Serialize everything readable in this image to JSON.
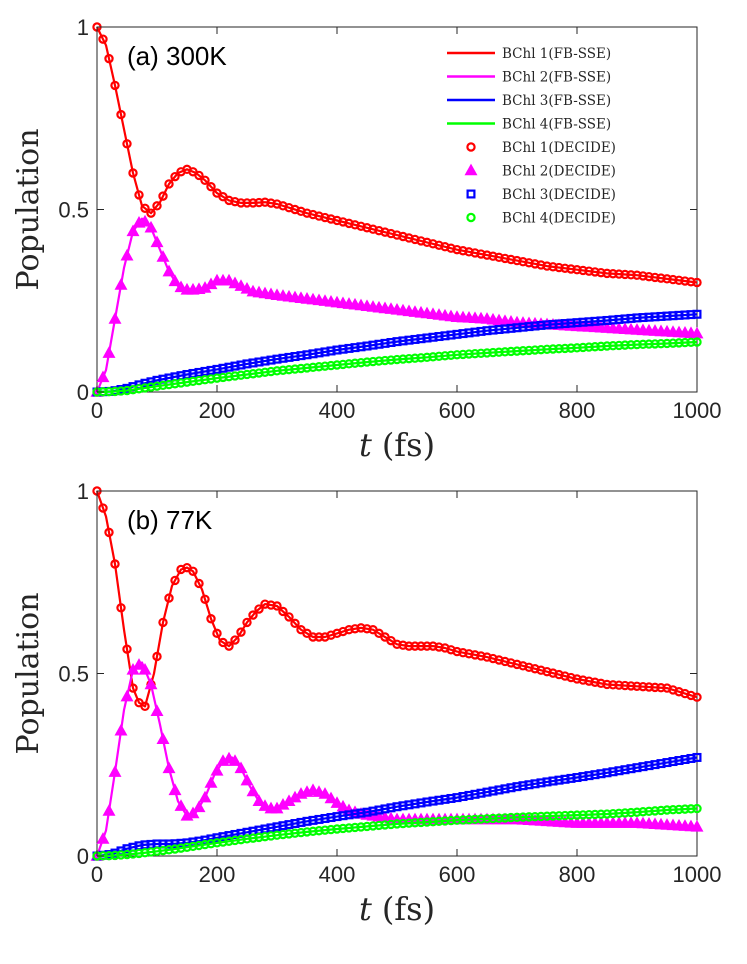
{
  "chart_data": [
    {
      "type": "line",
      "panel_label": "(a) 300K",
      "xlabel_var": "t",
      "xlabel_unit": "(fs)",
      "ylabel": "Population",
      "xlim": [
        0,
        1000
      ],
      "ylim": [
        0,
        1
      ],
      "xticks": [
        0,
        200,
        400,
        600,
        800,
        1000
      ],
      "yticks": [
        0,
        0.5,
        1
      ],
      "ytick_labels": [
        "0",
        "0.5",
        "1"
      ],
      "legend_position": "top-right",
      "legend": [
        "BChl 1(FB-SSE)",
        "BChl 2(FB-SSE)",
        "BChl 3(FB-SSE)",
        "BChl 4(FB-SSE)",
        "BChl 1(DECIDE)",
        "BChl 2(DECIDE)",
        "BChl 3(DECIDE)",
        "BChl 4(DECIDE)"
      ],
      "series": [
        {
          "name": "BChl 1",
          "color": "#ff0000",
          "marker": "circle",
          "x": [
            0,
            15,
            30,
            45,
            60,
            75,
            90,
            105,
            120,
            135,
            150,
            165,
            180,
            200,
            220,
            240,
            260,
            280,
            300,
            320,
            350,
            400,
            450,
            500,
            550,
            600,
            650,
            700,
            750,
            800,
            850,
            900,
            950,
            1000
          ],
          "y": [
            1.0,
            0.95,
            0.84,
            0.72,
            0.6,
            0.51,
            0.49,
            0.52,
            0.57,
            0.6,
            0.61,
            0.6,
            0.58,
            0.545,
            0.525,
            0.518,
            0.518,
            0.52,
            0.515,
            0.505,
            0.49,
            0.47,
            0.45,
            0.43,
            0.41,
            0.39,
            0.375,
            0.36,
            0.345,
            0.335,
            0.325,
            0.32,
            0.31,
            0.3
          ]
        },
        {
          "name": "BChl 2",
          "color": "#ff00ff",
          "marker": "triangle",
          "x": [
            0,
            15,
            30,
            45,
            60,
            75,
            90,
            105,
            120,
            135,
            150,
            165,
            180,
            200,
            220,
            240,
            260,
            280,
            300,
            350,
            400,
            450,
            500,
            550,
            600,
            650,
            700,
            750,
            800,
            850,
            900,
            950,
            1000
          ],
          "y": [
            0.0,
            0.06,
            0.2,
            0.34,
            0.44,
            0.475,
            0.45,
            0.39,
            0.33,
            0.29,
            0.28,
            0.28,
            0.285,
            0.305,
            0.305,
            0.29,
            0.275,
            0.27,
            0.265,
            0.255,
            0.245,
            0.235,
            0.225,
            0.215,
            0.205,
            0.2,
            0.19,
            0.185,
            0.18,
            0.175,
            0.17,
            0.165,
            0.16
          ]
        },
        {
          "name": "BChl 3",
          "color": "#0000ff",
          "marker": "square",
          "x": [
            0,
            25,
            50,
            75,
            100,
            150,
            200,
            250,
            300,
            350,
            400,
            450,
            500,
            550,
            600,
            650,
            700,
            750,
            800,
            850,
            900,
            950,
            1000
          ],
          "y": [
            0.0,
            0.002,
            0.01,
            0.022,
            0.032,
            0.048,
            0.062,
            0.077,
            0.09,
            0.102,
            0.115,
            0.126,
            0.138,
            0.148,
            0.158,
            0.168,
            0.176,
            0.184,
            0.19,
            0.196,
            0.203,
            0.208,
            0.213
          ]
        },
        {
          "name": "BChl 4",
          "color": "#00ff00",
          "marker": "circle",
          "x": [
            0,
            25,
            50,
            75,
            100,
            150,
            200,
            250,
            300,
            350,
            400,
            450,
            500,
            550,
            600,
            650,
            700,
            750,
            800,
            850,
            900,
            950,
            1000
          ],
          "y": [
            0.0,
            0.001,
            0.004,
            0.01,
            0.016,
            0.027,
            0.038,
            0.048,
            0.058,
            0.066,
            0.074,
            0.082,
            0.089,
            0.095,
            0.102,
            0.107,
            0.112,
            0.117,
            0.121,
            0.126,
            0.13,
            0.133,
            0.137
          ]
        }
      ]
    },
    {
      "type": "line",
      "panel_label": "(b) 77K",
      "xlabel_var": "t",
      "xlabel_unit": "(fs)",
      "ylabel": "Population",
      "xlim": [
        0,
        1000
      ],
      "ylim": [
        0,
        1
      ],
      "xticks": [
        0,
        200,
        400,
        600,
        800,
        1000
      ],
      "yticks": [
        0,
        0.5,
        1
      ],
      "ytick_labels": [
        "0",
        "0.5",
        "1"
      ],
      "series": [
        {
          "name": "BChl 1",
          "color": "#ff0000",
          "marker": "circle",
          "x": [
            0,
            15,
            30,
            45,
            60,
            70,
            80,
            95,
            110,
            125,
            140,
            150,
            160,
            175,
            190,
            205,
            220,
            235,
            250,
            265,
            280,
            300,
            320,
            340,
            360,
            380,
            400,
            420,
            440,
            460,
            480,
            500,
            520,
            540,
            560,
            580,
            600,
            650,
            700,
            750,
            800,
            850,
            900,
            950,
            1000
          ],
          "y": [
            1.0,
            0.93,
            0.8,
            0.62,
            0.46,
            0.42,
            0.41,
            0.5,
            0.64,
            0.74,
            0.785,
            0.79,
            0.78,
            0.73,
            0.65,
            0.59,
            0.575,
            0.6,
            0.64,
            0.67,
            0.69,
            0.685,
            0.655,
            0.62,
            0.6,
            0.6,
            0.61,
            0.62,
            0.625,
            0.62,
            0.6,
            0.58,
            0.575,
            0.575,
            0.575,
            0.57,
            0.56,
            0.545,
            0.525,
            0.505,
            0.485,
            0.47,
            0.465,
            0.46,
            0.435
          ]
        },
        {
          "name": "BChl 2",
          "color": "#ff00ff",
          "marker": "triangle",
          "x": [
            0,
            15,
            30,
            45,
            60,
            75,
            90,
            105,
            120,
            135,
            150,
            165,
            180,
            195,
            210,
            225,
            240,
            255,
            270,
            285,
            300,
            320,
            340,
            360,
            380,
            400,
            420,
            440,
            460,
            480,
            500,
            550,
            600,
            650,
            700,
            750,
            800,
            850,
            900,
            950,
            1000
          ],
          "y": [
            0.0,
            0.07,
            0.23,
            0.4,
            0.51,
            0.53,
            0.47,
            0.36,
            0.24,
            0.15,
            0.11,
            0.12,
            0.16,
            0.22,
            0.26,
            0.27,
            0.24,
            0.19,
            0.15,
            0.13,
            0.13,
            0.15,
            0.17,
            0.18,
            0.17,
            0.145,
            0.125,
            0.115,
            0.11,
            0.105,
            0.1,
            0.1,
            0.1,
            0.1,
            0.1,
            0.095,
            0.09,
            0.09,
            0.09,
            0.085,
            0.08
          ]
        },
        {
          "name": "BChl 3",
          "color": "#0000ff",
          "marker": "square",
          "x": [
            0,
            25,
            50,
            75,
            100,
            125,
            150,
            175,
            200,
            250,
            300,
            350,
            400,
            450,
            500,
            550,
            600,
            650,
            700,
            750,
            800,
            850,
            900,
            950,
            1000
          ],
          "y": [
            0.0,
            0.005,
            0.02,
            0.03,
            0.033,
            0.033,
            0.036,
            0.042,
            0.05,
            0.065,
            0.08,
            0.095,
            0.108,
            0.12,
            0.135,
            0.148,
            0.16,
            0.175,
            0.19,
            0.203,
            0.215,
            0.228,
            0.242,
            0.256,
            0.27
          ]
        },
        {
          "name": "BChl 4",
          "color": "#00ff00",
          "marker": "circle",
          "x": [
            0,
            25,
            50,
            75,
            100,
            125,
            150,
            175,
            200,
            250,
            300,
            350,
            400,
            450,
            500,
            550,
            600,
            650,
            700,
            750,
            800,
            850,
            900,
            950,
            1000
          ],
          "y": [
            0.0,
            0.001,
            0.004,
            0.008,
            0.013,
            0.018,
            0.024,
            0.03,
            0.036,
            0.047,
            0.057,
            0.066,
            0.074,
            0.081,
            0.088,
            0.093,
            0.098,
            0.102,
            0.106,
            0.109,
            0.112,
            0.115,
            0.12,
            0.126,
            0.13
          ]
        }
      ]
    }
  ]
}
